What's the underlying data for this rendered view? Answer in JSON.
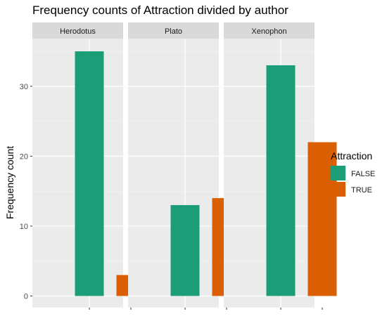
{
  "chart_data": {
    "type": "bar",
    "title": "Frequency counts of Attraction divided by author",
    "xlabel": "",
    "ylabel": "Frequency count",
    "ylim": [
      0,
      35
    ],
    "y_ticks": [
      0,
      10,
      20,
      30
    ],
    "facets": [
      "Herodotus",
      "Plato",
      "Xenophon"
    ],
    "legend": {
      "title": "Attraction",
      "position": "right",
      "entries": [
        {
          "label": "FALSE",
          "color": "#1b9e77"
        },
        {
          "label": "TRUE",
          "color": "#d95f02"
        }
      ]
    },
    "series": [
      {
        "name": "FALSE",
        "color": "#1b9e77",
        "values": [
          35,
          13,
          33
        ]
      },
      {
        "name": "TRUE",
        "color": "#d95f02",
        "values": [
          3,
          14,
          22
        ]
      }
    ],
    "grid": true,
    "panel_background": "#ebebeb",
    "strip_background": "#d9d9d9"
  }
}
